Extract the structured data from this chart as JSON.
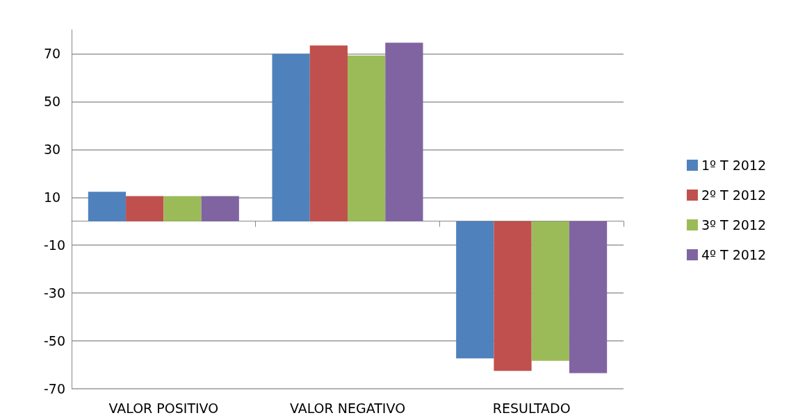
{
  "chart_data": {
    "type": "bar",
    "categories": [
      "VALOR POSITIVO",
      "VALOR NEGATIVO",
      "RESULTADO"
    ],
    "series": [
      {
        "name": "1º T 2012",
        "color": "#4f81bd",
        "values": [
          12.3,
          70,
          -57.3
        ]
      },
      {
        "name": "2º T 2012",
        "color": "#c0504d",
        "values": [
          10.5,
          73.5,
          -62.5
        ]
      },
      {
        "name": "3º T 2012",
        "color": "#9bbb59",
        "values": [
          10.5,
          69.3,
          -58.3
        ]
      },
      {
        "name": "4º T 2012",
        "color": "#8064a2",
        "values": [
          10.5,
          74.6,
          -63.5
        ]
      }
    ],
    "ylim": [
      -70,
      80
    ],
    "yticks": [
      -70,
      -50,
      -30,
      -10,
      10,
      30,
      50,
      70
    ],
    "grid": "y",
    "legend": "right"
  }
}
